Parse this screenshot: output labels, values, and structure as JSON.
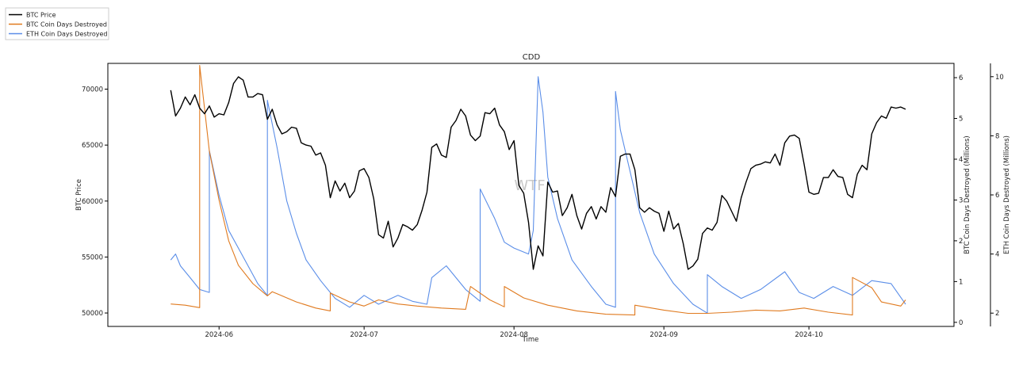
{
  "chart_data": {
    "type": "line",
    "title": "CDD",
    "watermark": "WTF",
    "xlabel": "Time",
    "ylabel_left": "BTC Price",
    "ylabel_right1": "BTC Coin Days Destroyed (Millions)",
    "ylabel_right2": "ETH Coin Days Destroyed (Millions)",
    "grid": false,
    "legend_placement": "top-left, outside plot",
    "x_range": [
      "2024-05-09",
      "2024-10-31"
    ],
    "x_ticks": [
      {
        "date": "2024-06-01",
        "label": "2024-06"
      },
      {
        "date": "2024-07-01",
        "label": "2024-07"
      },
      {
        "date": "2024-08-01",
        "label": "2024-08"
      },
      {
        "date": "2024-09-01",
        "label": "2024-09"
      },
      {
        "date": "2024-10-01",
        "label": "2024-10"
      }
    ],
    "y_left": {
      "range": [
        48800,
        72300
      ],
      "ticks": [
        50000,
        55000,
        60000,
        65000,
        70000
      ]
    },
    "y_right1": {
      "range": [
        -0.1,
        6.35
      ],
      "ticks": [
        0,
        1,
        2,
        3,
        4,
        5,
        6
      ]
    },
    "y_right2": {
      "range": [
        1.55,
        10.45
      ],
      "ticks": [
        2,
        4,
        6,
        8,
        10
      ]
    },
    "series": [
      {
        "name": "BTC Price",
        "axis": "left",
        "color": "#000000",
        "points": [
          [
            "2024-05-22",
            69900
          ],
          [
            "2024-05-23",
            67600
          ],
          [
            "2024-05-24",
            68300
          ],
          [
            "2024-05-25",
            69300
          ],
          [
            "2024-05-26",
            68600
          ],
          [
            "2024-05-27",
            69500
          ],
          [
            "2024-05-28",
            68300
          ],
          [
            "2024-05-29",
            67800
          ],
          [
            "2024-05-30",
            68500
          ],
          [
            "2024-05-31",
            67500
          ],
          [
            "2024-06-01",
            67800
          ],
          [
            "2024-06-02",
            67700
          ],
          [
            "2024-06-03",
            68800
          ],
          [
            "2024-06-04",
            70500
          ],
          [
            "2024-06-05",
            71100
          ],
          [
            "2024-06-06",
            70800
          ],
          [
            "2024-06-07",
            69300
          ],
          [
            "2024-06-08",
            69300
          ],
          [
            "2024-06-09",
            69600
          ],
          [
            "2024-06-10",
            69500
          ],
          [
            "2024-06-11",
            67300
          ],
          [
            "2024-06-12",
            68200
          ],
          [
            "2024-06-13",
            66800
          ],
          [
            "2024-06-14",
            66000
          ],
          [
            "2024-06-15",
            66200
          ],
          [
            "2024-06-16",
            66600
          ],
          [
            "2024-06-17",
            66500
          ],
          [
            "2024-06-18",
            65200
          ],
          [
            "2024-06-19",
            65000
          ],
          [
            "2024-06-20",
            64900
          ],
          [
            "2024-06-21",
            64100
          ],
          [
            "2024-06-22",
            64300
          ],
          [
            "2024-06-23",
            63200
          ],
          [
            "2024-06-24",
            60300
          ],
          [
            "2024-06-25",
            61800
          ],
          [
            "2024-06-26",
            60900
          ],
          [
            "2024-06-27",
            61600
          ],
          [
            "2024-06-28",
            60300
          ],
          [
            "2024-06-29",
            60900
          ],
          [
            "2024-06-30",
            62700
          ],
          [
            "2024-07-01",
            62900
          ],
          [
            "2024-07-02",
            62100
          ],
          [
            "2024-07-03",
            60200
          ],
          [
            "2024-07-04",
            57000
          ],
          [
            "2024-07-05",
            56700
          ],
          [
            "2024-07-06",
            58200
          ],
          [
            "2024-07-07",
            55900
          ],
          [
            "2024-07-08",
            56700
          ],
          [
            "2024-07-09",
            57900
          ],
          [
            "2024-07-10",
            57700
          ],
          [
            "2024-07-11",
            57400
          ],
          [
            "2024-07-12",
            57900
          ],
          [
            "2024-07-13",
            59200
          ],
          [
            "2024-07-14",
            60800
          ],
          [
            "2024-07-15",
            64800
          ],
          [
            "2024-07-16",
            65100
          ],
          [
            "2024-07-17",
            64100
          ],
          [
            "2024-07-18",
            63900
          ],
          [
            "2024-07-19",
            66600
          ],
          [
            "2024-07-20",
            67200
          ],
          [
            "2024-07-21",
            68200
          ],
          [
            "2024-07-22",
            67600
          ],
          [
            "2024-07-23",
            65900
          ],
          [
            "2024-07-24",
            65400
          ],
          [
            "2024-07-25",
            65800
          ],
          [
            "2024-07-26",
            67900
          ],
          [
            "2024-07-27",
            67800
          ],
          [
            "2024-07-28",
            68300
          ],
          [
            "2024-07-29",
            66800
          ],
          [
            "2024-07-30",
            66200
          ],
          [
            "2024-07-31",
            64600
          ],
          [
            "2024-08-01",
            65400
          ],
          [
            "2024-08-02",
            61400
          ],
          [
            "2024-08-03",
            60700
          ],
          [
            "2024-08-04",
            58100
          ],
          [
            "2024-08-05",
            53900
          ],
          [
            "2024-08-06",
            56000
          ],
          [
            "2024-08-07",
            55100
          ],
          [
            "2024-08-08",
            61700
          ],
          [
            "2024-08-09",
            60800
          ],
          [
            "2024-08-10",
            60900
          ],
          [
            "2024-08-11",
            58700
          ],
          [
            "2024-08-12",
            59400
          ],
          [
            "2024-08-13",
            60600
          ],
          [
            "2024-08-14",
            58700
          ],
          [
            "2024-08-15",
            57500
          ],
          [
            "2024-08-16",
            58900
          ],
          [
            "2024-08-17",
            59500
          ],
          [
            "2024-08-18",
            58400
          ],
          [
            "2024-08-19",
            59500
          ],
          [
            "2024-08-20",
            59000
          ],
          [
            "2024-08-21",
            61200
          ],
          [
            "2024-08-22",
            60400
          ],
          [
            "2024-08-23",
            64000
          ],
          [
            "2024-08-24",
            64200
          ],
          [
            "2024-08-25",
            64200
          ],
          [
            "2024-08-26",
            62800
          ],
          [
            "2024-08-27",
            59400
          ],
          [
            "2024-08-28",
            59000
          ],
          [
            "2024-08-29",
            59400
          ],
          [
            "2024-08-30",
            59100
          ],
          [
            "2024-08-31",
            58900
          ],
          [
            "2024-09-01",
            57300
          ],
          [
            "2024-09-02",
            59100
          ],
          [
            "2024-09-03",
            57500
          ],
          [
            "2024-09-04",
            58000
          ],
          [
            "2024-09-05",
            56200
          ],
          [
            "2024-09-06",
            53900
          ],
          [
            "2024-09-07",
            54200
          ],
          [
            "2024-09-08",
            54800
          ],
          [
            "2024-09-09",
            57100
          ],
          [
            "2024-09-10",
            57600
          ],
          [
            "2024-09-11",
            57400
          ],
          [
            "2024-09-12",
            58100
          ],
          [
            "2024-09-13",
            60500
          ],
          [
            "2024-09-14",
            60000
          ],
          [
            "2024-09-15",
            59100
          ],
          [
            "2024-09-16",
            58200
          ],
          [
            "2024-09-17",
            60300
          ],
          [
            "2024-09-18",
            61700
          ],
          [
            "2024-09-19",
            62900
          ],
          [
            "2024-09-20",
            63200
          ],
          [
            "2024-09-21",
            63300
          ],
          [
            "2024-09-22",
            63500
          ],
          [
            "2024-09-23",
            63400
          ],
          [
            "2024-09-24",
            64200
          ],
          [
            "2024-09-25",
            63200
          ],
          [
            "2024-09-26",
            65200
          ],
          [
            "2024-09-27",
            65800
          ],
          [
            "2024-09-28",
            65900
          ],
          [
            "2024-09-29",
            65600
          ],
          [
            "2024-09-30",
            63300
          ],
          [
            "2024-10-01",
            60800
          ],
          [
            "2024-10-02",
            60600
          ],
          [
            "2024-10-03",
            60700
          ],
          [
            "2024-10-04",
            62100
          ],
          [
            "2024-10-05",
            62100
          ],
          [
            "2024-10-06",
            62800
          ],
          [
            "2024-10-07",
            62200
          ],
          [
            "2024-10-08",
            62100
          ],
          [
            "2024-10-09",
            60600
          ],
          [
            "2024-10-10",
            60300
          ],
          [
            "2024-10-11",
            62400
          ],
          [
            "2024-10-12",
            63200
          ],
          [
            "2024-10-13",
            62800
          ],
          [
            "2024-10-14",
            66000
          ],
          [
            "2024-10-15",
            67000
          ],
          [
            "2024-10-16",
            67600
          ],
          [
            "2024-10-17",
            67400
          ],
          [
            "2024-10-18",
            68400
          ],
          [
            "2024-10-19",
            68300
          ],
          [
            "2024-10-20",
            68400
          ],
          [
            "2024-10-21",
            68200
          ]
        ]
      },
      {
        "name": "BTC Coin Days Destroyed",
        "axis": "right1",
        "color": "#e07a1f",
        "points": [
          [
            "2024-05-22",
            0.45
          ],
          [
            "2024-05-25",
            0.42
          ],
          [
            "2024-05-28",
            0.36
          ],
          [
            "2024-05-28",
            6.3
          ],
          [
            "2024-05-30",
            4.2
          ],
          [
            "2024-06-01",
            3.0
          ],
          [
            "2024-06-03",
            2.0
          ],
          [
            "2024-06-05",
            1.4
          ],
          [
            "2024-06-08",
            0.95
          ],
          [
            "2024-06-11",
            0.65
          ],
          [
            "2024-06-12",
            0.75
          ],
          [
            "2024-06-13",
            0.7
          ],
          [
            "2024-06-17",
            0.5
          ],
          [
            "2024-06-21",
            0.35
          ],
          [
            "2024-06-24",
            0.28
          ],
          [
            "2024-06-24",
            0.72
          ],
          [
            "2024-06-28",
            0.5
          ],
          [
            "2024-07-01",
            0.4
          ],
          [
            "2024-07-04",
            0.55
          ],
          [
            "2024-07-08",
            0.45
          ],
          [
            "2024-07-12",
            0.4
          ],
          [
            "2024-07-17",
            0.35
          ],
          [
            "2024-07-22",
            0.32
          ],
          [
            "2024-07-23",
            0.88
          ],
          [
            "2024-07-27",
            0.55
          ],
          [
            "2024-07-30",
            0.38
          ],
          [
            "2024-07-30",
            0.88
          ],
          [
            "2024-08-03",
            0.6
          ],
          [
            "2024-08-08",
            0.42
          ],
          [
            "2024-08-14",
            0.28
          ],
          [
            "2024-08-20",
            0.2
          ],
          [
            "2024-08-26",
            0.18
          ],
          [
            "2024-08-26",
            0.42
          ],
          [
            "2024-09-01",
            0.3
          ],
          [
            "2024-09-06",
            0.22
          ],
          [
            "2024-09-10",
            0.22
          ],
          [
            "2024-09-15",
            0.25
          ],
          [
            "2024-09-20",
            0.3
          ],
          [
            "2024-09-25",
            0.28
          ],
          [
            "2024-09-30",
            0.35
          ],
          [
            "2024-10-05",
            0.25
          ],
          [
            "2024-10-10",
            0.18
          ],
          [
            "2024-10-10",
            1.1
          ],
          [
            "2024-10-14",
            0.85
          ],
          [
            "2024-10-16",
            0.5
          ],
          [
            "2024-10-20",
            0.4
          ],
          [
            "2024-10-21",
            0.55
          ]
        ]
      },
      {
        "name": "ETH Coin Days Destroyed",
        "axis": "right2",
        "color": "#5b8ee8",
        "points": [
          [
            "2024-05-22",
            3.8
          ],
          [
            "2024-05-23",
            4.0
          ],
          [
            "2024-05-24",
            3.6
          ],
          [
            "2024-05-26",
            3.2
          ],
          [
            "2024-05-28",
            2.8
          ],
          [
            "2024-05-30",
            2.7
          ],
          [
            "2024-05-30",
            7.5
          ],
          [
            "2024-06-01",
            6.0
          ],
          [
            "2024-06-03",
            4.8
          ],
          [
            "2024-06-05",
            4.2
          ],
          [
            "2024-06-07",
            3.6
          ],
          [
            "2024-06-09",
            3.0
          ],
          [
            "2024-06-11",
            2.6
          ],
          [
            "2024-06-11",
            9.2
          ],
          [
            "2024-06-13",
            7.6
          ],
          [
            "2024-06-15",
            5.8
          ],
          [
            "2024-06-17",
            4.7
          ],
          [
            "2024-06-19",
            3.8
          ],
          [
            "2024-06-22",
            3.1
          ],
          [
            "2024-06-25",
            2.5
          ],
          [
            "2024-06-28",
            2.2
          ],
          [
            "2024-07-01",
            2.6
          ],
          [
            "2024-07-04",
            2.3
          ],
          [
            "2024-07-08",
            2.6
          ],
          [
            "2024-07-11",
            2.4
          ],
          [
            "2024-07-14",
            2.3
          ],
          [
            "2024-07-15",
            3.2
          ],
          [
            "2024-07-18",
            3.6
          ],
          [
            "2024-07-22",
            2.8
          ],
          [
            "2024-07-25",
            2.4
          ],
          [
            "2024-07-25",
            6.2
          ],
          [
            "2024-07-28",
            5.2
          ],
          [
            "2024-07-30",
            4.4
          ],
          [
            "2024-08-01",
            4.2
          ],
          [
            "2024-08-04",
            4.0
          ],
          [
            "2024-08-05",
            4.8
          ],
          [
            "2024-08-06",
            10.0
          ],
          [
            "2024-08-07",
            8.8
          ],
          [
            "2024-08-08",
            6.6
          ],
          [
            "2024-08-10",
            5.2
          ],
          [
            "2024-08-13",
            3.8
          ],
          [
            "2024-08-17",
            2.9
          ],
          [
            "2024-08-20",
            2.3
          ],
          [
            "2024-08-22",
            2.2
          ],
          [
            "2024-08-22",
            9.5
          ],
          [
            "2024-08-23",
            8.2
          ],
          [
            "2024-08-25",
            6.8
          ],
          [
            "2024-08-27",
            5.4
          ],
          [
            "2024-08-30",
            4.0
          ],
          [
            "2024-09-03",
            3.0
          ],
          [
            "2024-09-07",
            2.3
          ],
          [
            "2024-09-10",
            2.0
          ],
          [
            "2024-09-10",
            3.3
          ],
          [
            "2024-09-13",
            2.9
          ],
          [
            "2024-09-17",
            2.5
          ],
          [
            "2024-09-21",
            2.8
          ],
          [
            "2024-09-26",
            3.4
          ],
          [
            "2024-09-29",
            2.7
          ],
          [
            "2024-10-02",
            2.5
          ],
          [
            "2024-10-06",
            2.9
          ],
          [
            "2024-10-10",
            2.6
          ],
          [
            "2024-10-14",
            3.1
          ],
          [
            "2024-10-18",
            3.0
          ],
          [
            "2024-10-21",
            2.3
          ]
        ]
      }
    ]
  }
}
